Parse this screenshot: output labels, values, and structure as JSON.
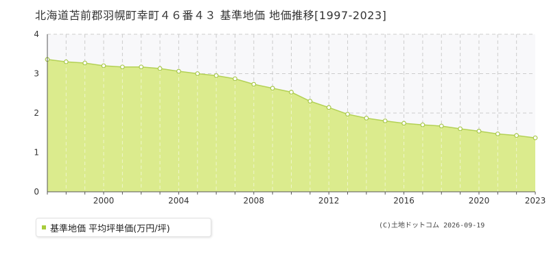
{
  "title": "北海道苫前郡羽幌町幸町４６番４３ 基準地価 地価推移[1997-2023]",
  "legend": {
    "label": "基準地価 平均坪単価(万円/坪)"
  },
  "credit": "(C)土地ドットコム 2026-09-19",
  "colors": {
    "fill": "#dbeb8d",
    "line": "#b3d155",
    "point_stroke": "#a8c84a",
    "grid": "#cccccc",
    "axis": "#555555",
    "plot_bg": "#f8f8fa"
  },
  "chart_data": {
    "type": "area",
    "title": "北海道苫前郡羽幌町幸町４６番４３ 基準地価 地価推移[1997-2023]",
    "xlabel": "",
    "ylabel": "",
    "xlim": [
      1997,
      2023
    ],
    "ylim": [
      0,
      4
    ],
    "yticks": [
      0,
      1,
      2,
      3,
      4
    ],
    "xtick_labels": [
      "2000",
      "2004",
      "2008",
      "2012",
      "2016",
      "2020",
      "2023"
    ],
    "grid": true,
    "legend_position": "bottom-left",
    "series": [
      {
        "name": "基準地価 平均坪単価(万円/坪)",
        "x": [
          1997,
          1998,
          1999,
          2000,
          2001,
          2002,
          2003,
          2004,
          2005,
          2006,
          2007,
          2008,
          2009,
          2010,
          2011,
          2012,
          2013,
          2014,
          2015,
          2016,
          2017,
          2018,
          2019,
          2020,
          2021,
          2022,
          2023
        ],
        "values": [
          3.36,
          3.3,
          3.27,
          3.2,
          3.17,
          3.17,
          3.13,
          3.06,
          3.0,
          2.95,
          2.87,
          2.73,
          2.63,
          2.53,
          2.3,
          2.14,
          1.97,
          1.87,
          1.8,
          1.74,
          1.7,
          1.67,
          1.6,
          1.54,
          1.47,
          1.43,
          1.37
        ]
      }
    ]
  }
}
